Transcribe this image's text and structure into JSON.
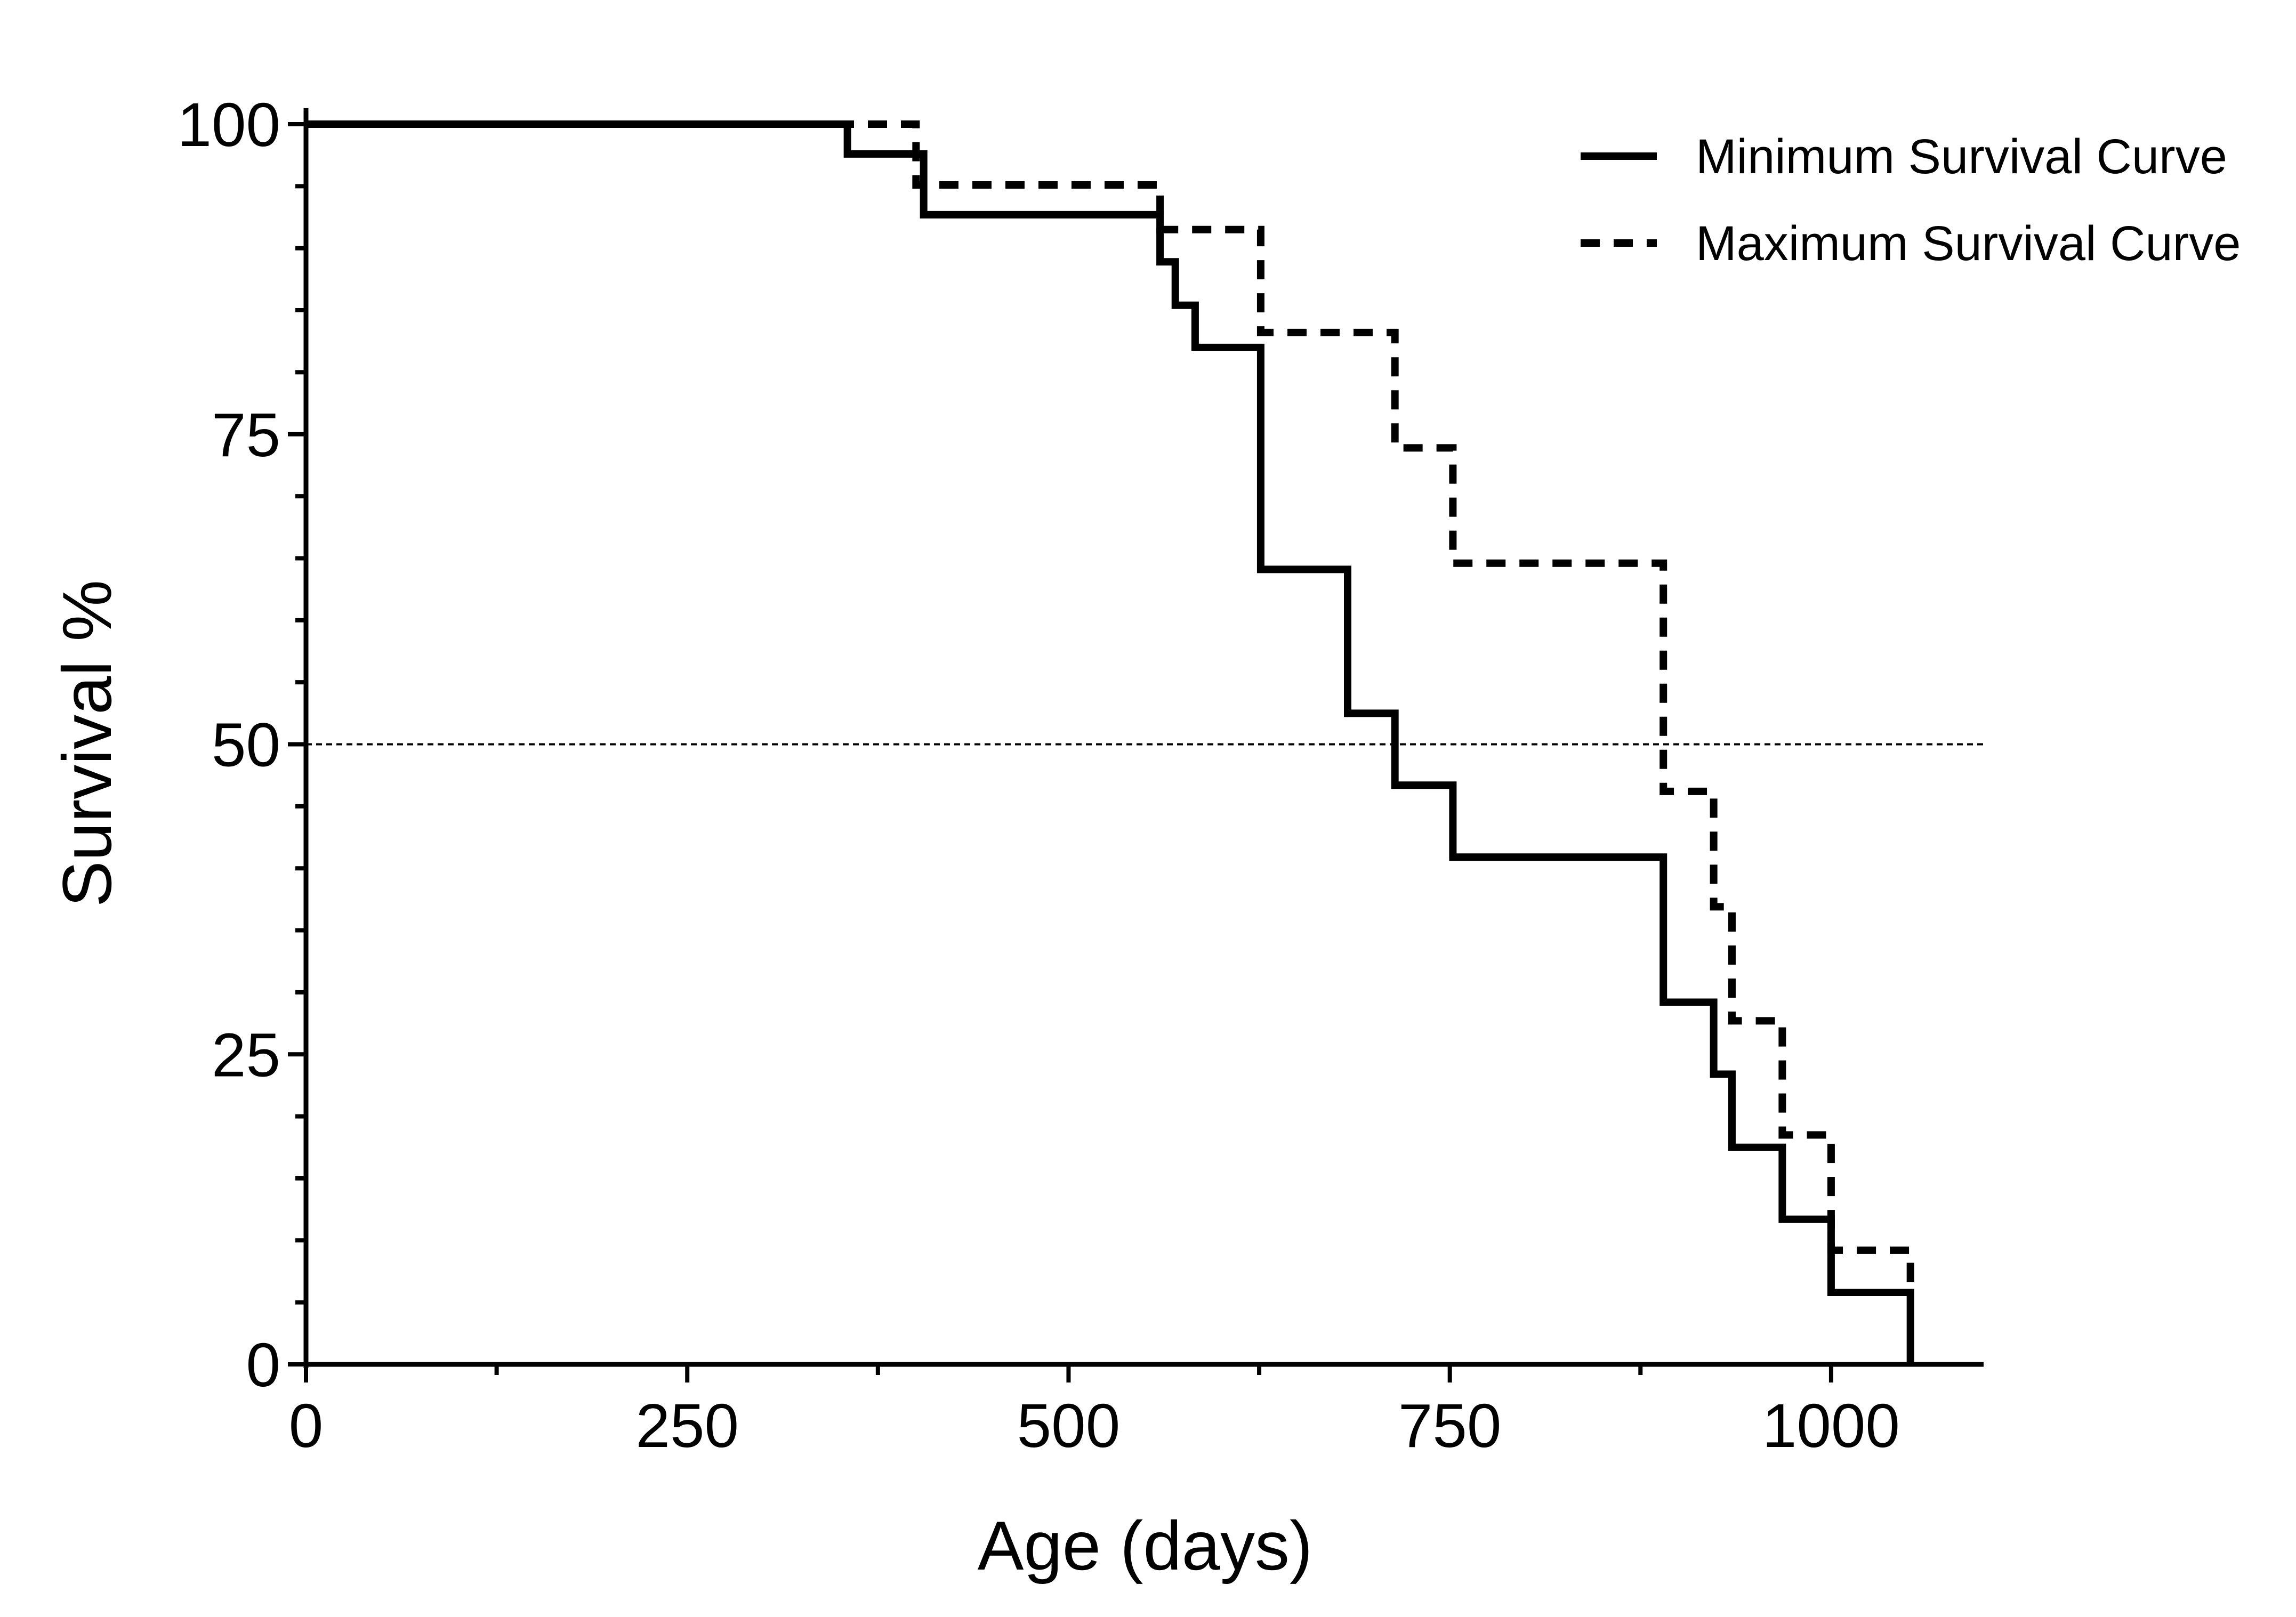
{
  "chart_data": {
    "type": "line",
    "step": true,
    "xlabel": "Age (days)",
    "ylabel": "Survival %",
    "xlim": [
      0,
      1100
    ],
    "ylim": [
      0,
      100
    ],
    "xticks": [
      0,
      250,
      500,
      750,
      1000
    ],
    "xticks_minor": [
      125,
      375,
      625,
      875
    ],
    "yticks": [
      0,
      25,
      50,
      75,
      100
    ],
    "yticks_minor_step": 5,
    "reference_line": {
      "y": 50,
      "style": "dotted"
    },
    "legend_position": "top-right",
    "grid": false,
    "colors": {
      "line": "#000000",
      "background": "#ffffff"
    },
    "series": [
      {
        "name": "Minimum Survival Curve",
        "style": "solid",
        "x": [
          0,
          355,
          405,
          560,
          570,
          583,
          626,
          683,
          714,
          752,
          890,
          923,
          935,
          968,
          1000,
          1052
        ],
        "y": [
          100,
          97.6,
          92.7,
          88.9,
          85.4,
          82.0,
          64.1,
          52.5,
          46.7,
          40.9,
          29.2,
          23.4,
          17.5,
          11.7,
          5.8,
          0
        ]
      },
      {
        "name": "Maximum Survival Curve",
        "style": "dashed",
        "x": [
          0,
          400,
          560,
          626,
          714,
          752,
          890,
          923,
          935,
          968,
          1000,
          1052
        ],
        "y": [
          100,
          95.1,
          91.5,
          83.2,
          73.9,
          64.6,
          46.2,
          36.9,
          27.7,
          18.5,
          9.2,
          6.0
        ]
      }
    ]
  }
}
